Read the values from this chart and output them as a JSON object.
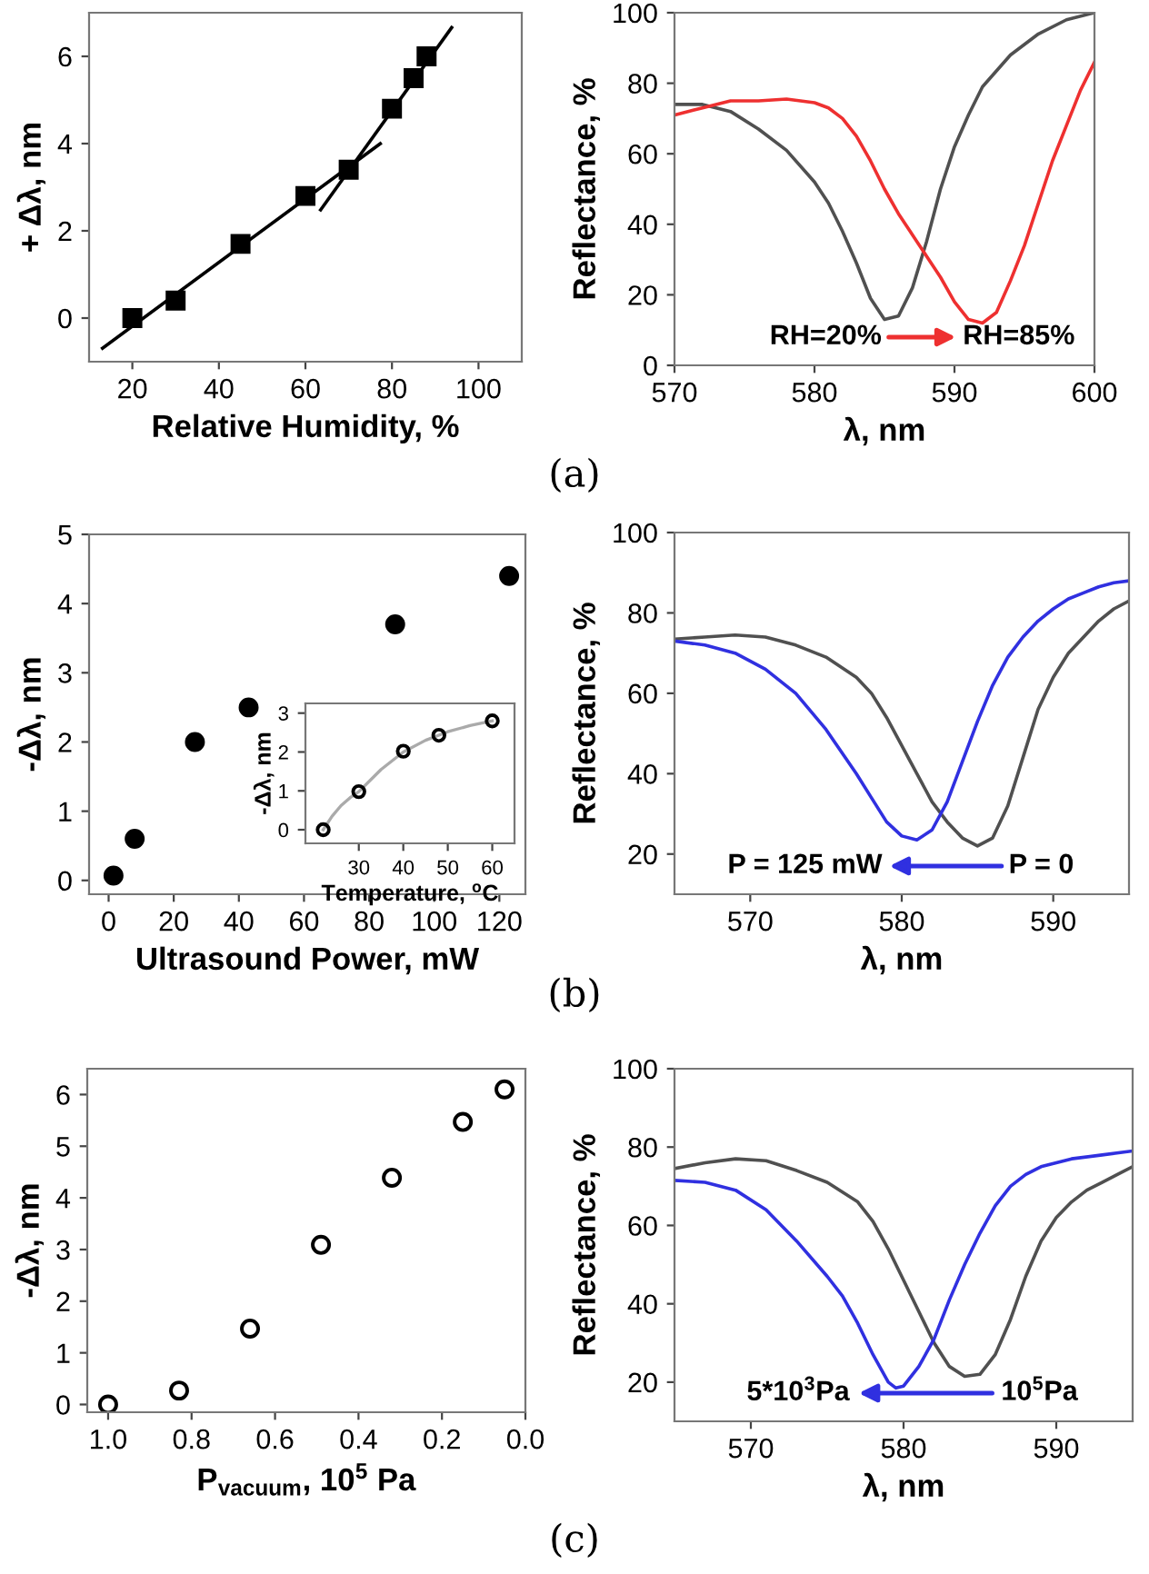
{
  "chart_data": [
    {
      "type": "scatter",
      "xlabel": "Relative Humidity, %",
      "ylabel": "+ Δλ, nm",
      "xlim": [
        10,
        110
      ],
      "ylim": [
        -1,
        7
      ],
      "xticks": [
        20,
        40,
        60,
        80,
        100
      ],
      "yticks": [
        0,
        2,
        4,
        6
      ],
      "grid": false,
      "legend": false,
      "annotations": [
        "(a)"
      ],
      "series": [
        {
          "type": "scatter",
          "marker": "square",
          "color": "#000000",
          "x": [
            20,
            30,
            45,
            60,
            70,
            80,
            85,
            88
          ],
          "values": [
            0,
            0.4,
            1.7,
            2.8,
            3.4,
            4.8,
            5.5,
            6.0
          ]
        },
        {
          "type": "line",
          "marker": "none",
          "color": "#000000",
          "x": [
            13.1,
            77.3
          ],
          "values": [
            -0.69,
            4.0
          ]
        },
        {
          "type": "line",
          "marker": "none",
          "color": "#000000",
          "x": [
            63.5,
            93.8
          ],
          "values": [
            2.48,
            6.66
          ]
        }
      ]
    },
    {
      "type": "line",
      "xlabel": "λ, nm",
      "ylabel": "Reflectance, %",
      "xlim": [
        570,
        600
      ],
      "ylim": [
        0,
        100
      ],
      "xticks": [
        570,
        580,
        590,
        600
      ],
      "yticks": [
        0,
        20,
        40,
        60,
        80,
        100
      ],
      "grid": false,
      "legend": false,
      "line_style": "solid",
      "annotations": [
        "RH=20%",
        "RH=85%"
      ],
      "series": [
        {
          "color": "#505050",
          "x": [
            570,
            572,
            574,
            576,
            578,
            580,
            581,
            582,
            583,
            584,
            585,
            586,
            587,
            588,
            589,
            590,
            591,
            592,
            594,
            596,
            598,
            600
          ],
          "values": [
            74,
            74,
            72,
            67,
            61,
            52,
            46,
            38,
            29,
            19,
            13,
            14,
            22,
            35,
            50,
            62,
            71,
            79,
            88,
            94,
            98,
            100
          ]
        },
        {
          "color": "#ee3030",
          "x": [
            570,
            572,
            574,
            576,
            578,
            580,
            581,
            582,
            583,
            584,
            585,
            586,
            587,
            588,
            589,
            590,
            591,
            592,
            593,
            594,
            595,
            596,
            597,
            598,
            599,
            600
          ],
          "values": [
            71,
            73,
            75,
            75,
            75.5,
            74.5,
            73,
            70,
            65,
            58,
            50,
            43,
            37,
            31,
            25,
            18,
            13,
            12,
            15,
            24,
            34,
            46,
            58,
            68,
            78,
            86
          ]
        }
      ]
    },
    {
      "type": "scatter",
      "xlabel": "Ultrasound Power, mW",
      "ylabel": "-Δλ, nm",
      "xlim": [
        -6,
        128
      ],
      "ylim": [
        -0.2,
        5
      ],
      "xticks": [
        0,
        20,
        40,
        60,
        80,
        100,
        120
      ],
      "yticks": [
        0,
        1,
        2,
        3,
        4,
        5
      ],
      "grid": false,
      "legend": false,
      "marker": "circle",
      "annotations": [
        "(b)"
      ],
      "series": [
        {
          "color": "#000000",
          "x": [
            1.5,
            8,
            26.5,
            43,
            88,
            123
          ],
          "values": [
            0.07,
            0.6,
            2.0,
            2.5,
            3.7,
            4.4
          ]
        }
      ]
    },
    {
      "type": "scatter",
      "xlabel": "Temperature, $^{o}$C",
      "ylabel": "-Δλ, nm",
      "xlim": [
        18,
        65
      ],
      "ylim": [
        -0.35,
        3.25
      ],
      "xticks": [
        30,
        40,
        50,
        60
      ],
      "yticks": [
        0,
        1,
        2,
        3
      ],
      "grid": false,
      "legend": false,
      "series": [
        {
          "type": "line",
          "marker": "none",
          "color": "#aaaaaa",
          "x": [
            22,
            24,
            26,
            28,
            30,
            35,
            40,
            45,
            50,
            55,
            60
          ],
          "values": [
            0,
            0.35,
            0.62,
            0.82,
            0.98,
            1.55,
            2.0,
            2.3,
            2.52,
            2.68,
            2.8
          ]
        },
        {
          "type": "scatter",
          "marker": "circle",
          "color": "#000000",
          "x": [
            22,
            30,
            40,
            48,
            60
          ],
          "values": [
            0,
            0.98,
            2.02,
            2.43,
            2.8
          ]
        }
      ]
    },
    {
      "type": "line",
      "xlabel": "λ, nm",
      "ylabel": "Reflectance, %",
      "xlim": [
        565,
        595
      ],
      "ylim": [
        10,
        100
      ],
      "xticks": [
        570,
        580,
        590
      ],
      "yticks": [
        20,
        40,
        60,
        80,
        100
      ],
      "grid": false,
      "legend": false,
      "line_style": "solid",
      "annotations": [
        "P = 0",
        "P = 125 mW"
      ],
      "series": [
        {
          "color": "#505050",
          "x": [
            565,
            567,
            569,
            571,
            573,
            575,
            577,
            578,
            579,
            580,
            581,
            582,
            583,
            584,
            585,
            586,
            587,
            588,
            589,
            590,
            591,
            592,
            593,
            594,
            595
          ],
          "values": [
            73.5,
            74,
            74.5,
            74,
            72,
            69,
            64,
            60,
            54,
            47,
            40,
            33,
            28,
            24,
            22,
            24,
            32,
            44,
            56,
            64,
            70,
            74,
            78,
            81,
            83
          ]
        },
        {
          "color": "#3030e0",
          "x": [
            565,
            567,
            569,
            571,
            573,
            575,
            577,
            578,
            579,
            580,
            581,
            582,
            583,
            584,
            585,
            586,
            587,
            588,
            589,
            590,
            591,
            592,
            593,
            594,
            595
          ],
          "values": [
            73,
            72,
            70,
            66,
            60,
            51,
            40,
            34,
            28,
            24.5,
            23.5,
            26,
            33,
            43,
            53,
            62,
            69,
            74,
            78,
            81,
            83.5,
            85,
            86.5,
            87.5,
            88
          ]
        }
      ]
    },
    {
      "type": "scatter",
      "xlabel": "P$_{vacuum}$, 10$^{5}$ Pa",
      "ylabel": "-Δλ, nm",
      "xlim": [
        1.05,
        0.0
      ],
      "ylim": [
        -0.15,
        6.5
      ],
      "xticks": [
        {
          "value": 1.0,
          "label": "1.0"
        },
        0.8,
        0.6,
        0.4,
        0.2,
        {
          "value": 0.0,
          "label": "0.0"
        }
      ],
      "yticks": [
        0,
        1,
        2,
        3,
        4,
        5,
        6
      ],
      "grid": false,
      "legend": false,
      "marker": "circle",
      "annotations": [
        "(c)"
      ],
      "series": [
        {
          "color": "#000000",
          "x": [
            1.0,
            0.83,
            0.66,
            0.49,
            0.32,
            0.15,
            0.05
          ],
          "values": [
            0,
            0.27,
            1.47,
            3.09,
            4.39,
            5.47,
            6.1
          ]
        }
      ]
    },
    {
      "type": "line",
      "xlabel": "λ, nm",
      "ylabel": "Reflectance, %",
      "xlim": [
        565,
        595
      ],
      "ylim": [
        10,
        100
      ],
      "xticks": [
        570,
        580,
        590
      ],
      "yticks": [
        20,
        40,
        60,
        80,
        100
      ],
      "grid": false,
      "legend": false,
      "line_style": "solid",
      "annotations": [
        "10$^{5}$Pa",
        "5*10$^{3}$Pa"
      ],
      "series": [
        {
          "color": "#505050",
          "x": [
            565,
            567,
            569,
            571,
            573,
            575,
            577,
            578,
            579,
            580,
            581,
            582,
            583,
            584,
            585,
            586,
            587,
            588,
            589,
            590,
            591,
            592,
            593,
            594,
            595
          ],
          "values": [
            74.5,
            76,
            77,
            76.5,
            74,
            71,
            66,
            61,
            54,
            46,
            38,
            30,
            24,
            21.5,
            22,
            27,
            36,
            47,
            56,
            62,
            66,
            69,
            71,
            73,
            75
          ]
        },
        {
          "color": "#3030e0",
          "x": [
            565,
            567,
            569,
            571,
            573,
            575,
            576,
            577,
            578,
            579,
            579.5,
            580,
            581,
            582,
            583,
            584,
            585,
            586,
            587,
            588,
            589,
            591,
            593,
            595
          ],
          "values": [
            71.5,
            71,
            69,
            64,
            56,
            47,
            42,
            35,
            27,
            20,
            18.5,
            19,
            24,
            31,
            41,
            50,
            58,
            65,
            70,
            73,
            75,
            77,
            78,
            79
          ]
        }
      ]
    }
  ]
}
